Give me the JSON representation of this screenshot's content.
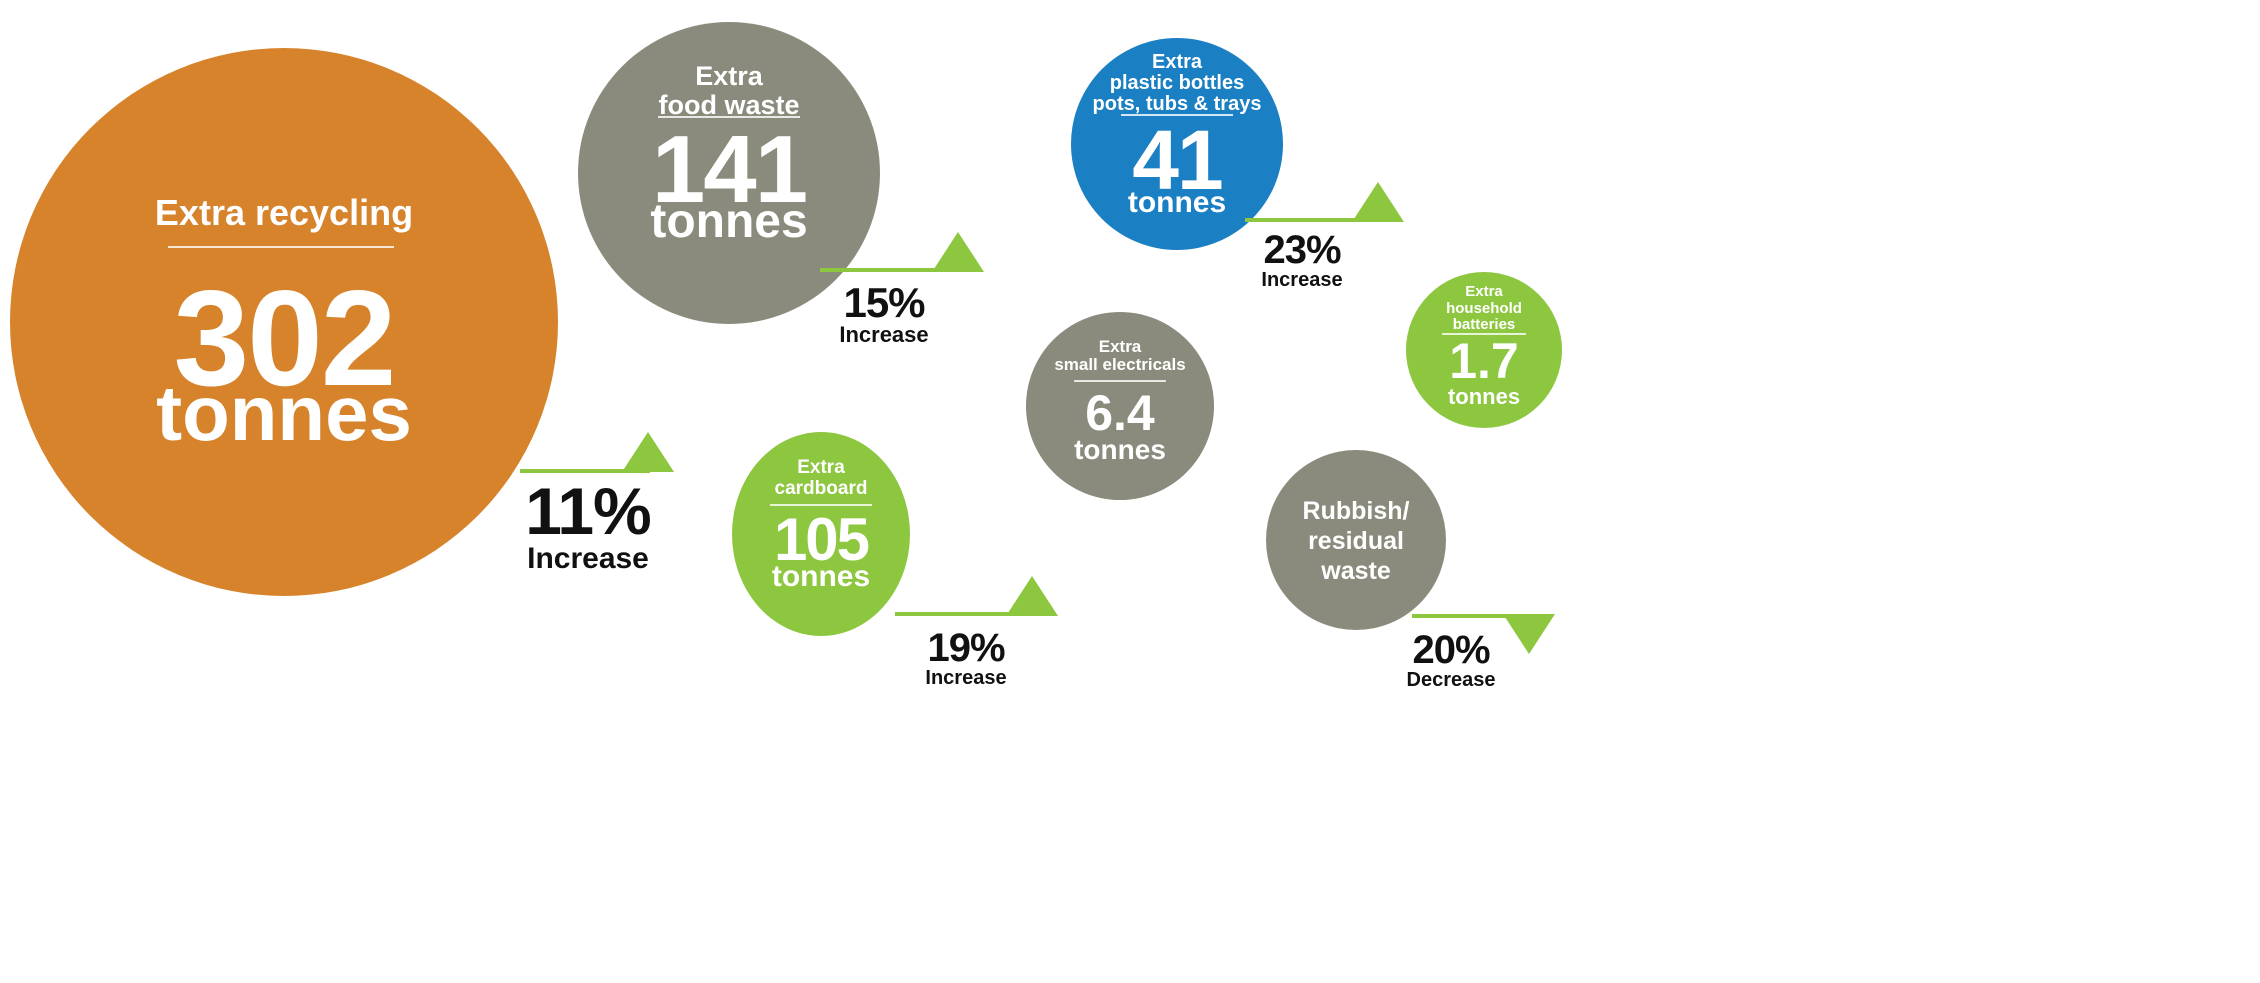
{
  "colors": {
    "orange": "#d6832b",
    "grey": "#8b8b7d",
    "blue": "#1b7fc3",
    "green": "#8dc63f",
    "text_dark": "#111111"
  },
  "stats": [
    {
      "label": "Extra recycling",
      "value": "302",
      "unit": "tonnes",
      "change": "11%",
      "direction": "Increase",
      "color": "orange"
    },
    {
      "label_lines": [
        "Extra",
        "food waste"
      ],
      "value": "141",
      "unit": "tonnes",
      "change": "15%",
      "direction": "Increase",
      "color": "grey"
    },
    {
      "label_lines": [
        "Extra",
        "plastic bottles",
        "pots, tubs & trays"
      ],
      "value": "41",
      "unit": "tonnes",
      "change": "23%",
      "direction": "Increase",
      "color": "blue"
    },
    {
      "label_lines": [
        "Extra",
        "cardboard"
      ],
      "value": "105",
      "unit": "tonnes",
      "change": "19%",
      "direction": "Increase",
      "color": "green"
    },
    {
      "label_lines": [
        "Extra",
        "small electricals"
      ],
      "value": "6.4",
      "unit": "tonnes",
      "color": "grey"
    },
    {
      "label_lines": [
        "Extra",
        "household",
        "batteries"
      ],
      "value": "1.7",
      "unit": "tonnes",
      "color": "green"
    },
    {
      "label_lines": [
        "Rubbish/",
        "residual",
        "waste"
      ],
      "change": "20%",
      "direction": "Decrease",
      "color": "grey"
    }
  ]
}
